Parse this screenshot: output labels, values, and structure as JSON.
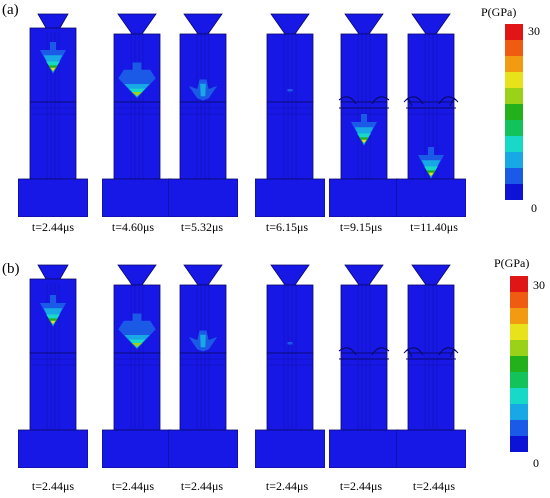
{
  "panels": [
    {
      "id": "a",
      "label": "(a)",
      "times": [
        "t=2.44μs",
        "t=4.60μs",
        "t=5.32μs",
        "t=6.15μs",
        "t=9.15μs",
        "t=11.40μs"
      ],
      "colorbar": {
        "title": "P(GPa)",
        "max_label": "30",
        "min_label": "0"
      }
    },
    {
      "id": "b",
      "label": "(b)",
      "times": [
        "t=2.44μs",
        "t=2.44μs",
        "t=2.44μs",
        "t=2.44μs",
        "t=2.44μs",
        "t=2.44μs"
      ],
      "colorbar": {
        "title": "P(GPa)",
        "max_label": "30",
        "min_label": "0"
      }
    }
  ],
  "colors": {
    "background_blue": "#1717e6",
    "mesh_line": "#0a0a6a",
    "scale": [
      "#0c12d6",
      "#1b5ae6",
      "#18a8e6",
      "#18d8c8",
      "#12c25a",
      "#22b11a",
      "#9ad21a",
      "#e8e21a",
      "#f29a12",
      "#ef5b10",
      "#e01616"
    ]
  }
}
